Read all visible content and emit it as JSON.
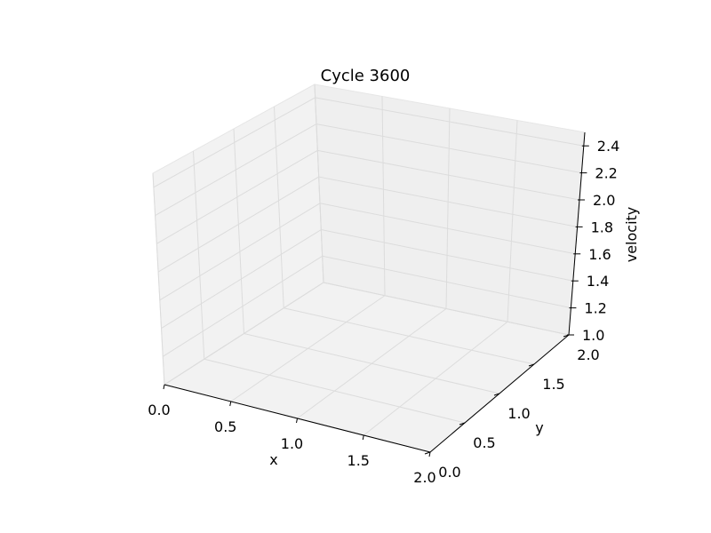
{
  "chart_data": {
    "type": "surface",
    "title": "Cycle 3600",
    "xlabel": "x",
    "ylabel": "y",
    "zlabel": "velocity",
    "xlim": [
      0.0,
      2.0
    ],
    "ylim": [
      0.0,
      2.0
    ],
    "zlim": [
      1.0,
      2.5
    ],
    "x_ticks": [
      "0.0",
      "0.5",
      "1.0",
      "1.5",
      "2.0"
    ],
    "y_ticks": [
      "0.0",
      "0.5",
      "1.0",
      "1.5",
      "2.0"
    ],
    "z_ticks": [
      "1.0",
      "1.2",
      "1.4",
      "1.6",
      "1.8",
      "2.0",
      "2.2",
      "2.4"
    ],
    "grid": true,
    "series": []
  }
}
